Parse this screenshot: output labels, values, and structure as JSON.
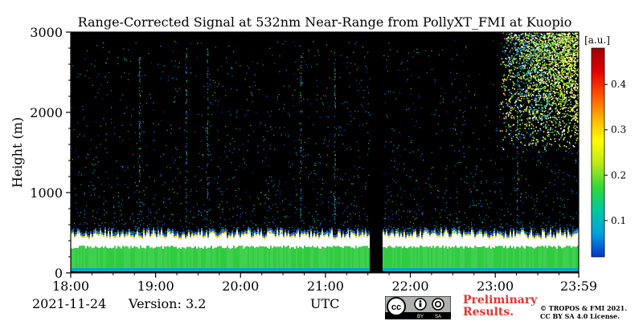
{
  "chart_data": {
    "type": "heatmap",
    "title": "Range-Corrected Signal at 532nm Near-Range from PollyXT_FMI at Kuopio",
    "xlabel": "UTC",
    "ylabel": "Height (m)",
    "x_ticks": [
      "18:00",
      "19:00",
      "20:00",
      "21:00",
      "22:00",
      "23:00",
      "23:59"
    ],
    "x_range_hours": [
      18.0,
      23.983
    ],
    "y_ticks": [
      "0",
      "1000",
      "2000",
      "3000"
    ],
    "ylim": [
      0,
      3000
    ],
    "colorbar": {
      "label": "[a.u.]",
      "ticks": [
        "0.1",
        "0.2",
        "0.3",
        "0.4"
      ],
      "range": [
        0.02,
        0.48
      ],
      "colors": [
        "#0033cc",
        "#00a0e0",
        "#00c8a0",
        "#30d838",
        "#b8e818",
        "#ffff00",
        "#ffb000",
        "#ff5000",
        "#e00000",
        "#a00000"
      ]
    },
    "features": {
      "surface_layer_top_m": [
        300,
        340
      ],
      "boundary_layer_top_m": [
        420,
        520
      ],
      "data_gap_hours": [
        21.52,
        21.68
      ],
      "upper_cloud_m": [
        1500,
        3000
      ],
      "upper_cloud_start_hour": 23.05
    }
  },
  "footer": {
    "date": "2021-11-24",
    "version": "Version: 3.2",
    "utc": "UTC",
    "cc": "cc",
    "by": "BY",
    "sa": "SA",
    "preliminary_line1": "Preliminary",
    "preliminary_line2": "Results.",
    "copyright_line1": "© TROPOS & FMI 2021.",
    "copyright_line2": "CC BY SA 4.0 License."
  }
}
